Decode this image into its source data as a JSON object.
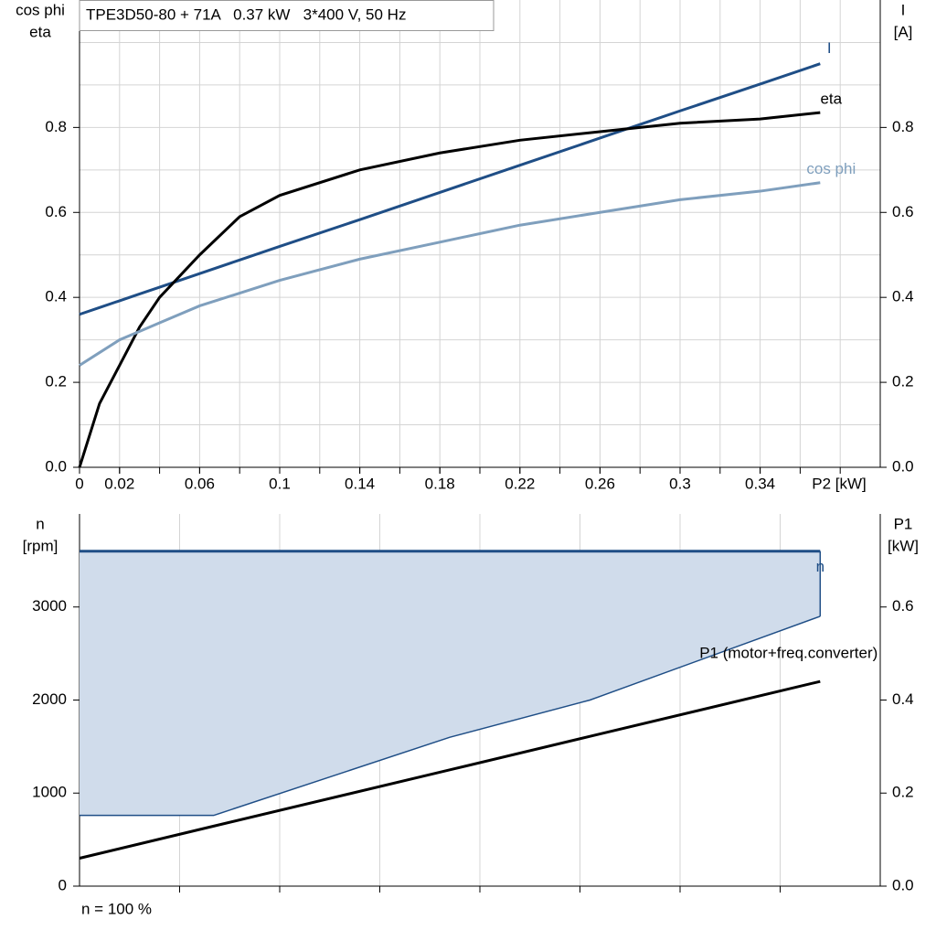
{
  "chart_data": [
    {
      "type": "line",
      "title": "TPE3D50-80 + 71A   0.37 kW   3*400 V, 50 Hz",
      "ylabel_lines": [
        "cos phi",
        "eta"
      ],
      "y2label_lines": [
        "I",
        "[A]"
      ],
      "xlabel": "P2 [kW]",
      "x": [
        0,
        0.01,
        0.02,
        0.03,
        0.04,
        0.06,
        0.08,
        0.1,
        0.14,
        0.18,
        0.22,
        0.26,
        0.3,
        0.34,
        0.37
      ],
      "series": [
        {
          "name": "I",
          "color": "#1f4e86",
          "axis": "y2",
          "values": [
            0.36,
            0.376,
            0.392,
            0.408,
            0.424,
            0.456,
            0.488,
            0.52,
            0.583,
            0.647,
            0.711,
            0.775,
            0.839,
            0.902,
            0.95
          ]
        },
        {
          "name": "eta",
          "color": "#000000",
          "values": [
            0,
            0.15,
            0.24,
            0.33,
            0.4,
            0.5,
            0.59,
            0.64,
            0.7,
            0.74,
            0.77,
            0.79,
            0.81,
            0.82,
            0.835
          ]
        },
        {
          "name": "cos phi",
          "color": "#7f9fbd",
          "values": [
            0.24,
            0.27,
            0.3,
            0.32,
            0.34,
            0.38,
            0.41,
            0.44,
            0.49,
            0.53,
            0.57,
            0.6,
            0.63,
            0.65,
            0.67
          ]
        }
      ],
      "xlim": [
        0,
        0.4
      ],
      "xticks": [
        0,
        0.02,
        0.06,
        0.1,
        0.14,
        0.18,
        0.22,
        0.26,
        0.3,
        0.34
      ],
      "xgrid": [
        0.02,
        0.04,
        0.06,
        0.08,
        0.1,
        0.12,
        0.14,
        0.16,
        0.18,
        0.2,
        0.22,
        0.24,
        0.26,
        0.28,
        0.3,
        0.32,
        0.34,
        0.36,
        0.38
      ],
      "ylim": [
        0,
        1.1
      ],
      "yticks": [
        {
          "value": 0,
          "label": "0.0"
        },
        0.2,
        0.4,
        0.6,
        0.8
      ],
      "ygrid": [
        0.1,
        0.2,
        0.3,
        0.4,
        0.5,
        0.6,
        0.7,
        0.8,
        0.9,
        1.0
      ],
      "y2lim": [
        0,
        1.1
      ],
      "y2ticks": [
        {
          "value": 0,
          "label": "0.0"
        },
        0.2,
        0.4,
        0.6,
        0.8
      ]
    },
    {
      "type": "area",
      "ylabel_lines": [
        "n",
        "[rpm]"
      ],
      "y2label_lines": [
        "P1",
        "[kW]"
      ],
      "note": "n = 100 %",
      "x": [
        0,
        0.067,
        0.185,
        0.255,
        0.37
      ],
      "series": [
        {
          "name": "n",
          "color": "#1f4e86",
          "fill": "#d0dceb",
          "values": [
            3600,
            3600,
            3600,
            3600,
            3600
          ],
          "lower": [
            760,
            760,
            1600,
            2000,
            2900
          ]
        },
        {
          "name": "P1 (motor+freq.converter)",
          "color": "#000000",
          "axis": "y2",
          "values": [
            0.06,
            0.129,
            0.25,
            0.322,
            0.44
          ]
        }
      ],
      "xlim": [
        0,
        0.4
      ],
      "xgrid": [
        0.05,
        0.1,
        0.15,
        0.2,
        0.25,
        0.3,
        0.35
      ],
      "ylim": [
        0,
        4000
      ],
      "yticks": [
        0,
        1000,
        2000,
        3000
      ],
      "y2lim": [
        0,
        0.8
      ],
      "y2ticks": [
        {
          "value": 0,
          "label": "0.0"
        },
        0.2,
        0.4,
        0.6
      ]
    }
  ]
}
